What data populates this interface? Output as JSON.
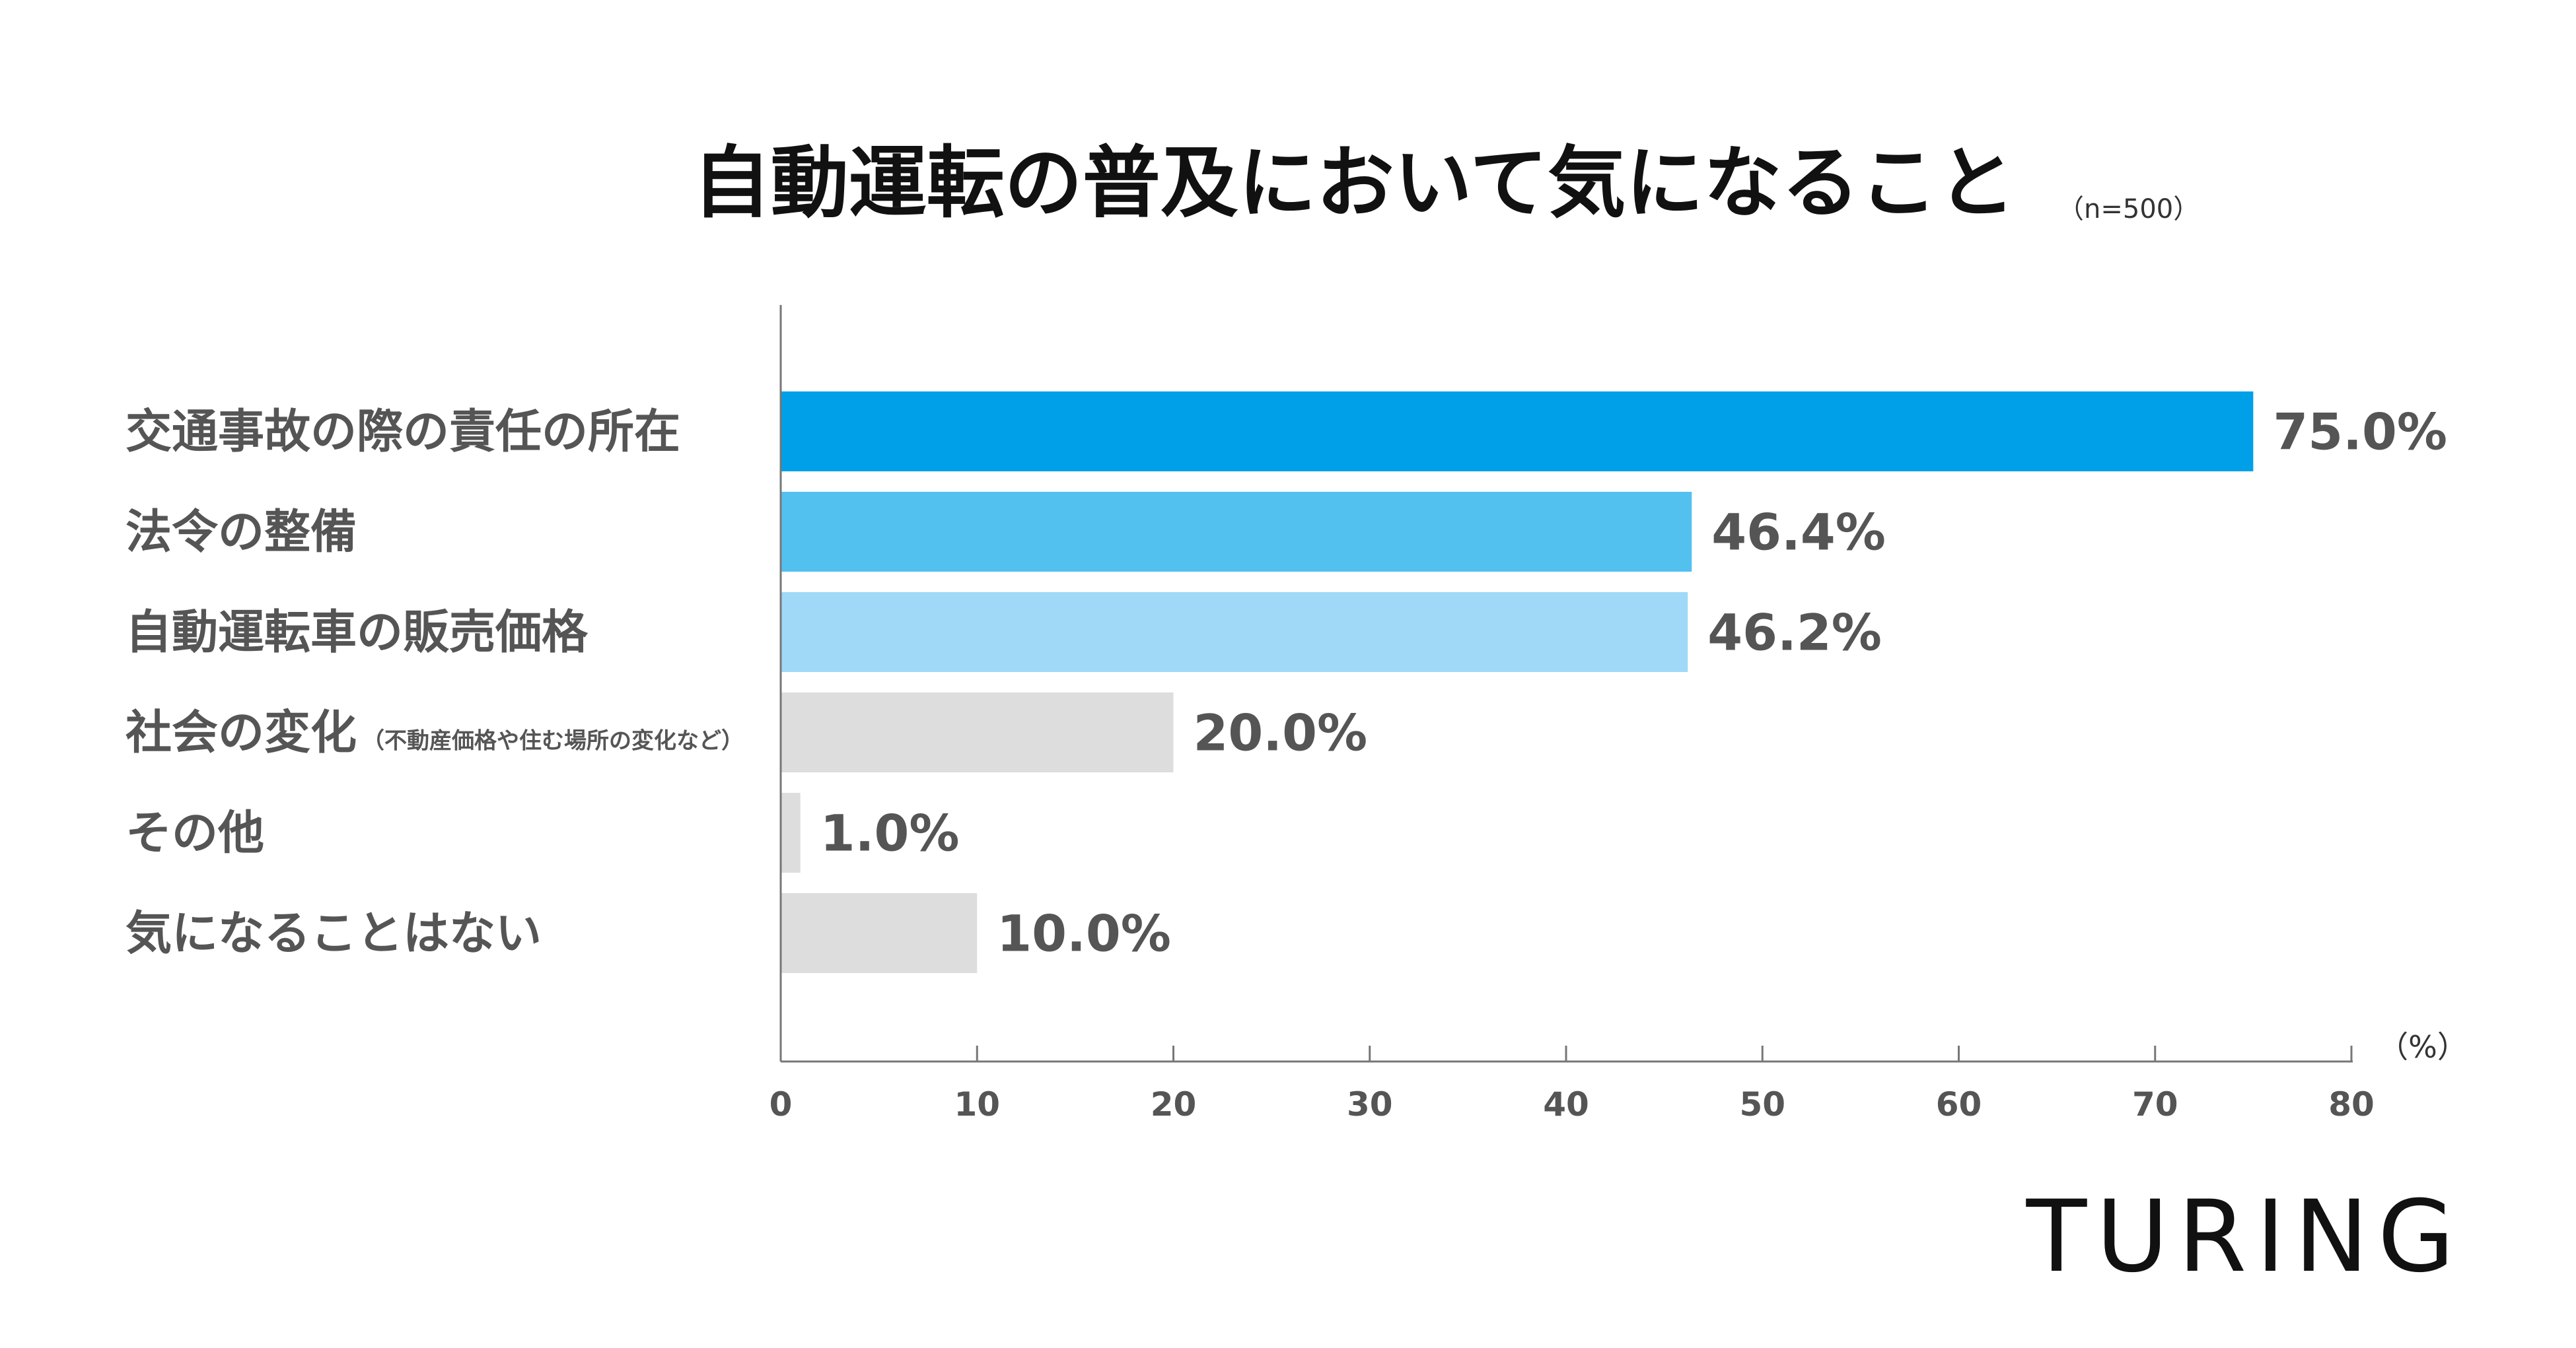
{
  "chart_data": {
    "type": "bar",
    "orientation": "horizontal",
    "title": "自動運転の普及において気になること",
    "note": "（n=500）",
    "unit_label": "（%）",
    "categories": [
      {
        "label": "交通事故の際の責任の所在",
        "sub": ""
      },
      {
        "label": "法令の整備",
        "sub": ""
      },
      {
        "label": "自動運転車の販売価格",
        "sub": ""
      },
      {
        "label": "社会の変化",
        "sub": "（不動産価格や住む場所の変化など）"
      },
      {
        "label": "その他",
        "sub": ""
      },
      {
        "label": "気になることはない",
        "sub": ""
      }
    ],
    "values": [
      75.0,
      46.4,
      46.2,
      20.0,
      1.0,
      10.0
    ],
    "value_labels": [
      "75.0%",
      "46.4%",
      "46.2%",
      "20.0%",
      "1.0%",
      "10.0%"
    ],
    "colors": [
      "#00a0e9",
      "#52c1f0",
      "#a0d9f7",
      "#dddddd",
      "#dddddd",
      "#dddddd"
    ],
    "xlim": [
      0,
      80
    ],
    "xticks": [
      0,
      10,
      20,
      30,
      40,
      50,
      60,
      70,
      80
    ],
    "grid": false,
    "legend": "none"
  },
  "brand": {
    "logo": "TURING"
  }
}
